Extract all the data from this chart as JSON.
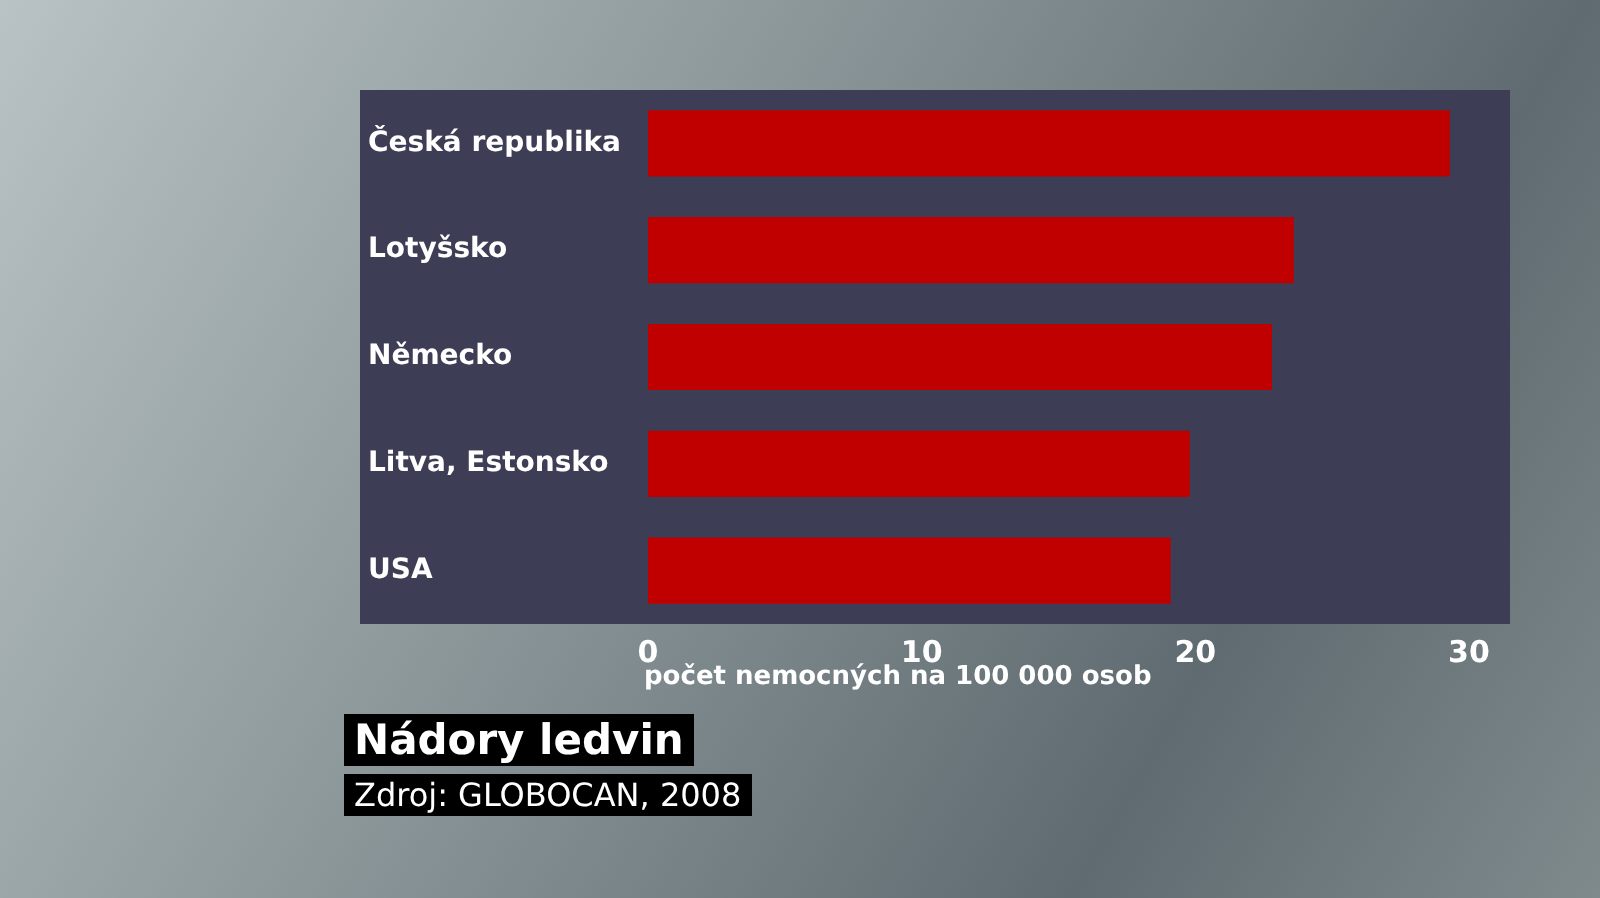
{
  "chart_data": {
    "type": "bar",
    "orientation": "horizontal",
    "title": "Nádory ledvin",
    "xlabel": "počet nemocných na 100 000 osob",
    "annotations": [
      "Zdroj: GLOBOCAN, 2008"
    ],
    "categories": [
      "Česká republika",
      "Lotyšsko",
      "Německo",
      "Litva, Estonsko",
      "USA"
    ],
    "values": [
      29.3,
      23.6,
      22.8,
      19.8,
      19.1
    ],
    "color": "#c00000",
    "xlim": [
      0,
      31.5
    ],
    "xticks": [
      0,
      10,
      20,
      30
    ],
    "grid": false,
    "legend": false
  }
}
